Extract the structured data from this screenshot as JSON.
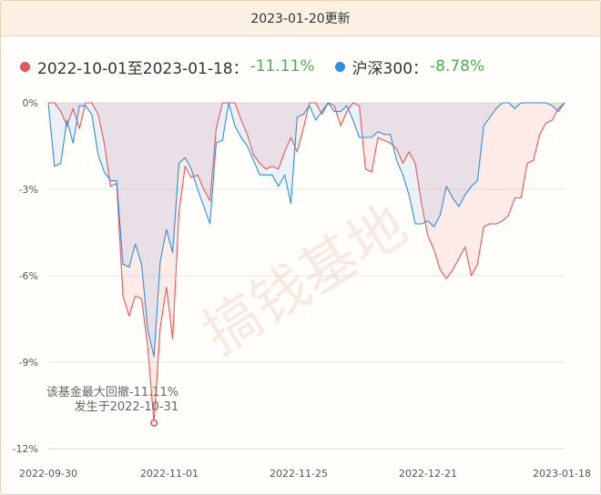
{
  "header": {
    "title": "2023-01-20更新"
  },
  "legend": {
    "fund_label": "2022-10-01至2023-01-18：",
    "fund_value": "-11.11%",
    "index_label": "沪深300：",
    "index_value": "-8.78%"
  },
  "watermark": "搞钱基地",
  "annotation": {
    "line1": "该基金最大回撤-11.11%",
    "line2": "发生于2022-10-31"
  },
  "colors": {
    "fund": "#e05a5a",
    "index": "#2f8fdc",
    "value_green": "#4caf50"
  },
  "chart_data": {
    "type": "area",
    "yticks": [
      "0%",
      "-3%",
      "-6%",
      "-9%",
      "-12%"
    ],
    "ylim": [
      -12,
      0
    ],
    "xticks": [
      "2022-09-30",
      "2022-11-01",
      "2022-11-25",
      "2022-12-21",
      "2023-01-18"
    ],
    "series": [
      {
        "name": "2022-10-01至2023-01-18",
        "values": [
          0,
          0,
          -0.3,
          -0.8,
          -0.2,
          -0.9,
          0,
          0,
          -0.4,
          -1.4,
          -2.9,
          -2.8,
          -6.7,
          -7.4,
          -6.7,
          -6.8,
          -8.5,
          -11.11,
          -7.8,
          -6.4,
          -8.2,
          -3.8,
          -2.2,
          -2.6,
          -2.5,
          -3.0,
          -3.4,
          -0.9,
          0,
          0,
          0,
          -0.6,
          -1.1,
          -1.8,
          -2.1,
          -2.3,
          -2.2,
          -2.3,
          -1.7,
          -1.2,
          -1.7,
          -0.9,
          0,
          0,
          -0.4,
          0,
          -0.1,
          -0.8,
          -0.3,
          0,
          -0.1,
          -2.3,
          -2.4,
          -1.2,
          -1.3,
          -1.4,
          -1.6,
          -2.1,
          -1.7,
          -2.1,
          -3.5,
          -4.6,
          -5.1,
          -5.8,
          -6.1,
          -5.8,
          -5.4,
          -5.0,
          -6.0,
          -5.6,
          -4.3,
          -4.2,
          -4.2,
          -4.1,
          -3.9,
          -3.3,
          -3.3,
          -2.1,
          -2.0,
          -1.1,
          -0.7,
          -0.6,
          -0.2,
          0
        ]
      },
      {
        "name": "沪深300",
        "values": [
          0,
          -2.2,
          -2.1,
          -0.6,
          -1.4,
          -0.1,
          -0.1,
          -0.4,
          -1.8,
          -2.4,
          -2.7,
          -2.7,
          -5.6,
          -5.7,
          -4.9,
          -5.6,
          -7.9,
          -8.8,
          -5.5,
          -4.4,
          -5.2,
          -2.1,
          -1.9,
          -2.3,
          -3.0,
          -3.6,
          -4.2,
          -1.4,
          -1.3,
          0,
          -0.8,
          -1.2,
          -1.5,
          -2.0,
          -2.5,
          -2.5,
          -2.5,
          -2.9,
          -2.5,
          -3.5,
          -0.5,
          -0.4,
          -0.1,
          -0.6,
          -0.3,
          0,
          -0.3,
          -0.3,
          -0.1,
          -0.6,
          -1.2,
          -1.2,
          -1.2,
          -1.0,
          -1.1,
          -1.1,
          -2.0,
          -2.5,
          -3.2,
          -4.2,
          -4.2,
          -4.1,
          -4.3,
          -3.9,
          -2.9,
          -3.3,
          -3.6,
          -3.2,
          -2.9,
          -2.7,
          -0.8,
          -0.5,
          -0.2,
          0,
          0,
          -0.2,
          0,
          0,
          0,
          0,
          0,
          -0.1,
          -0.3,
          0
        ]
      }
    ],
    "max_drawdown": {
      "value": -11.11,
      "date": "2022-10-31"
    }
  }
}
